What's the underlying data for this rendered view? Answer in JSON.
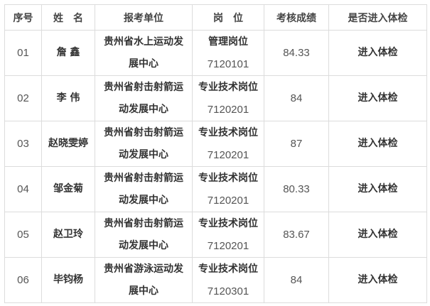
{
  "headers": [
    "序号",
    "姓　名",
    "报考单位",
    "岗　位",
    "考核成绩",
    "是否进入体检"
  ],
  "rows": [
    {
      "no": "01",
      "name": "詹 鑫",
      "unit_l1": "贵州省水上运动发",
      "unit_l2": "展中心",
      "post": "管理岗位",
      "code": "7120101",
      "score": "84.33",
      "result": "进入体检"
    },
    {
      "no": "02",
      "name": "李 伟",
      "unit_l1": "贵州省射击射箭运",
      "unit_l2": "动发展中心",
      "post": "专业技术岗位",
      "code": "7120201",
      "score": "84",
      "result": "进入体检"
    },
    {
      "no": "03",
      "name": "赵晓雯婷",
      "unit_l1": "贵州省射击射箭运",
      "unit_l2": "动发展中心",
      "post": "专业技术岗位",
      "code": "7120201",
      "score": "87",
      "result": "进入体检"
    },
    {
      "no": "04",
      "name": "邹金菊",
      "unit_l1": "贵州省射击射箭运",
      "unit_l2": "动发展中心",
      "post": "专业技术岗位",
      "code": "7120201",
      "score": "80.33",
      "result": "进入体检"
    },
    {
      "no": "05",
      "name": "赵卫玲",
      "unit_l1": "贵州省射击射箭运",
      "unit_l2": "动发展中心",
      "post": "专业技术岗位",
      "code": "7120201",
      "score": "83.67",
      "result": "进入体检"
    },
    {
      "no": "06",
      "name": "毕钧杨",
      "unit_l1": "贵州省游泳运动发",
      "unit_l2": "展中心",
      "post": "专业技术岗位",
      "code": "7120301",
      "score": "84",
      "result": "进入体检"
    }
  ]
}
